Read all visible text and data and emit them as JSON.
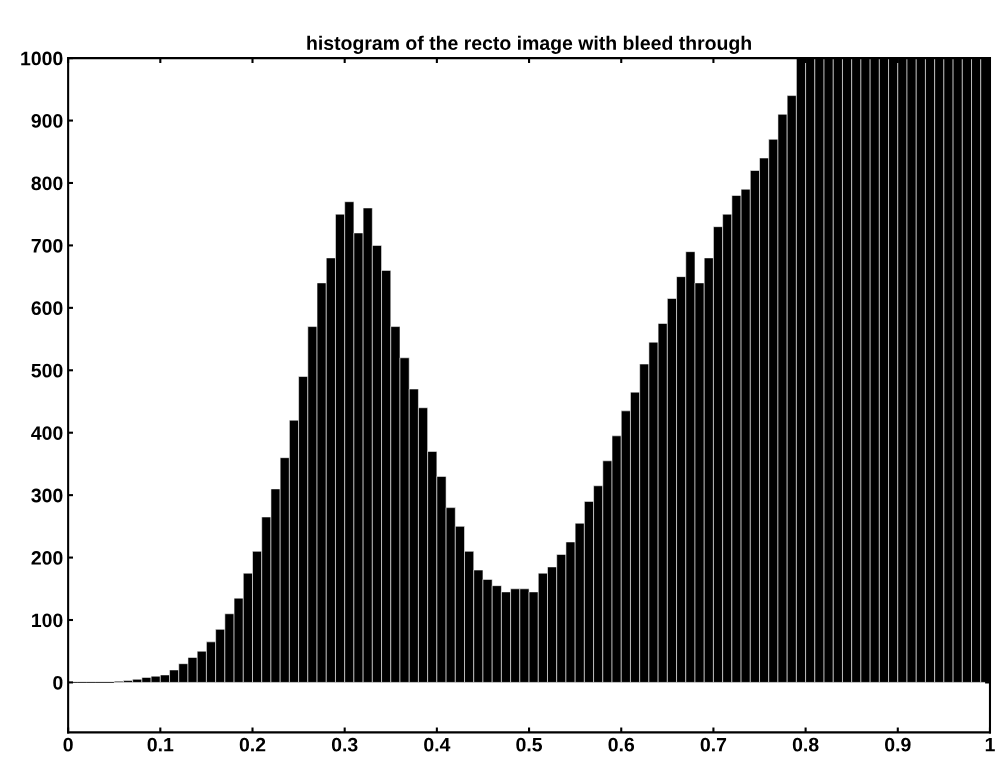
{
  "chart_data": {
    "type": "histogram",
    "title": "histogram of the recto image with bleed through",
    "bins": [
      0,
      0.01,
      0.02,
      0.03,
      0.04,
      0.05,
      0.06,
      0.07,
      0.08,
      0.09,
      0.1,
      0.11,
      0.12,
      0.13,
      0.14,
      0.15,
      0.16,
      0.17,
      0.18,
      0.19,
      0.2,
      0.21,
      0.22,
      0.23,
      0.24,
      0.25,
      0.26,
      0.27,
      0.28,
      0.29,
      0.3,
      0.31,
      0.32,
      0.33,
      0.34,
      0.35,
      0.36,
      0.37,
      0.38,
      0.39,
      0.4,
      0.41,
      0.42,
      0.43,
      0.44,
      0.45,
      0.46,
      0.47,
      0.48,
      0.49,
      0.5,
      0.51,
      0.52,
      0.53,
      0.54,
      0.55,
      0.56,
      0.57,
      0.58,
      0.59,
      0.6,
      0.61,
      0.62,
      0.63,
      0.64,
      0.65,
      0.66,
      0.67,
      0.68,
      0.69,
      0.7,
      0.71,
      0.72,
      0.73,
      0.74,
      0.75,
      0.76,
      0.77,
      0.78,
      0.79,
      0.8,
      0.81,
      0.82,
      0.83,
      0.84,
      0.85,
      0.86,
      0.87,
      0.88,
      0.89,
      0.9,
      0.91,
      0.92,
      0.93,
      0.94,
      0.95,
      0.96,
      0.97,
      0.98,
      0.99,
      1
    ],
    "values": [
      0,
      0,
      0,
      0,
      0,
      2,
      3,
      5,
      8,
      10,
      12,
      20,
      30,
      40,
      50,
      65,
      85,
      110,
      135,
      175,
      210,
      265,
      310,
      360,
      420,
      490,
      570,
      640,
      680,
      750,
      770,
      720,
      760,
      700,
      660,
      570,
      520,
      470,
      440,
      370,
      330,
      280,
      250,
      210,
      180,
      165,
      155,
      145,
      150,
      150,
      145,
      175,
      185,
      205,
      225,
      255,
      290,
      315,
      355,
      395,
      435,
      465,
      510,
      545,
      575,
      615,
      650,
      690,
      640,
      680,
      730,
      750,
      780,
      790,
      820,
      840,
      870,
      910,
      940,
      1000,
      1000,
      1000,
      1000,
      1000,
      1000,
      1000,
      1000,
      1000,
      1000,
      1000,
      1000,
      1000,
      1000,
      1000,
      1000,
      1000,
      1000,
      1000,
      1000,
      1000
    ],
    "color": "#000000",
    "xlim": [
      0,
      1
    ],
    "xticks": [
      0,
      0.1,
      0.2,
      0.3,
      0.4,
      0.5,
      0.6,
      0.7,
      0.8,
      0.9,
      1
    ],
    "ylim": [
      -80,
      1000
    ],
    "yticks": [
      0,
      100,
      200,
      300,
      400,
      500,
      600,
      700,
      800,
      900,
      1000
    ],
    "grid": false
  }
}
